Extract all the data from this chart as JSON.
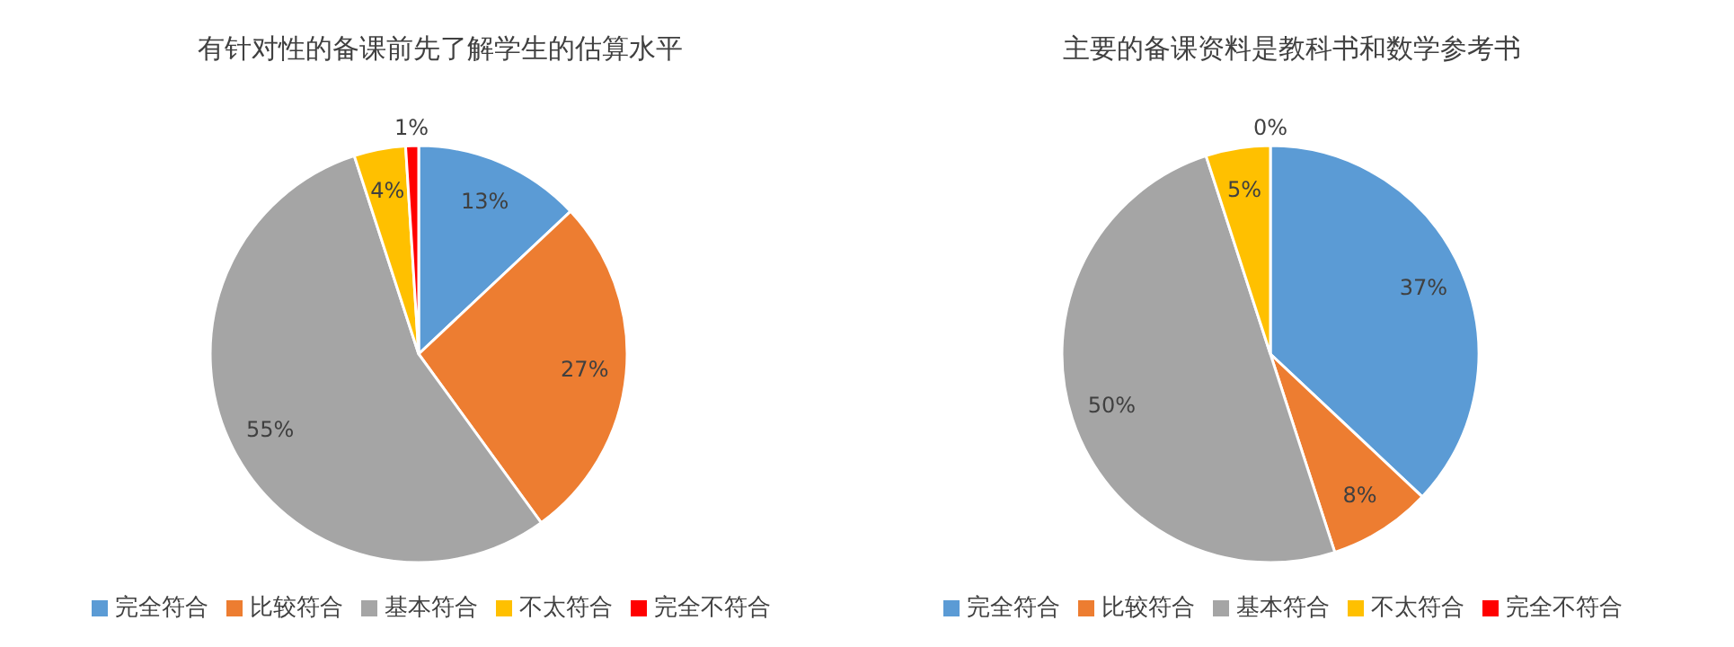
{
  "chart_data": [
    {
      "type": "pie",
      "title": "有针对性的备课前先了解学生的估算水平",
      "categories": [
        "完全符合",
        "比较符合",
        "基本符合",
        "不太符合",
        "完全不符合"
      ],
      "values": [
        13,
        27,
        55,
        4,
        1
      ],
      "colors": [
        "#5b9bd5",
        "#ed7d31",
        "#a5a5a5",
        "#ffc000",
        "#ff0000"
      ],
      "value_labels": [
        "13%",
        "27%",
        "55%",
        "4%",
        "1%"
      ],
      "legend": "bottom"
    },
    {
      "type": "pie",
      "title": "主要的备课资料是教科书和数学参考书",
      "categories": [
        "完全符合",
        "比较符合",
        "基本符合",
        "不太符合",
        "完全不符合"
      ],
      "values": [
        37,
        8,
        50,
        5,
        0
      ],
      "colors": [
        "#5b9bd5",
        "#ed7d31",
        "#a5a5a5",
        "#ffc000",
        "#ff0000"
      ],
      "value_labels": [
        "37%",
        "8%",
        "50%",
        "5%",
        "0%"
      ],
      "legend": "bottom"
    }
  ]
}
